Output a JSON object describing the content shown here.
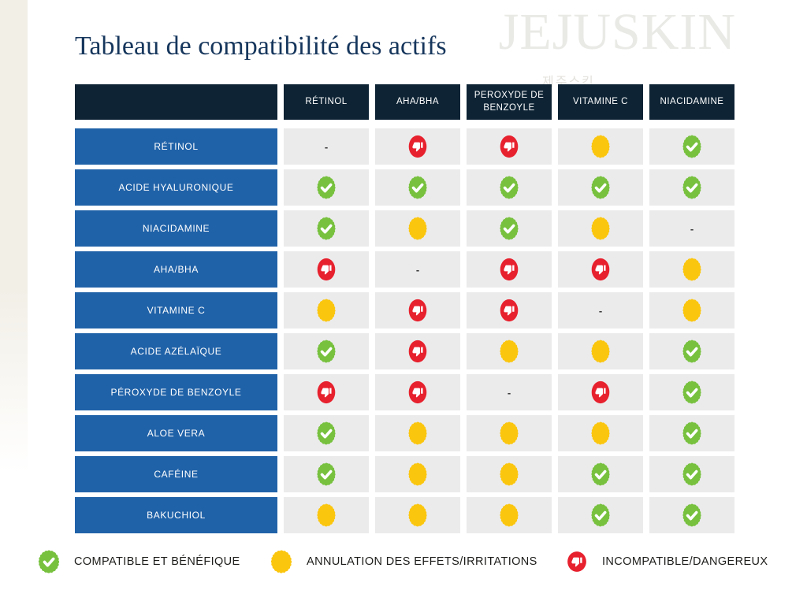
{
  "title": "Tableau de compatibilité des actifs",
  "watermark": {
    "text": "JEJUSKIN",
    "subtext": "제주스킨"
  },
  "chart_data": {
    "type": "table",
    "title": "Tableau de compatibilité des actifs",
    "columns": [
      "RÉTINOL",
      "AHA/BHA",
      "PEROXYDE DE BENZOYLE",
      "VITAMINE C",
      "NIACIDAMINE"
    ],
    "rows": [
      {
        "label": "RÉTINOL",
        "cells": [
          "-",
          "incompatible",
          "incompatible",
          "annulation",
          "compatible"
        ]
      },
      {
        "label": "ACIDE HYALURONIQUE",
        "cells": [
          "compatible",
          "compatible",
          "compatible",
          "compatible",
          "compatible"
        ]
      },
      {
        "label": "NIACIDAMINE",
        "cells": [
          "compatible",
          "annulation",
          "compatible",
          "annulation",
          "-"
        ]
      },
      {
        "label": "AHA/BHA",
        "cells": [
          "incompatible",
          "-",
          "incompatible",
          "incompatible",
          "annulation"
        ]
      },
      {
        "label": "VITAMINE C",
        "cells": [
          "annulation",
          "incompatible",
          "incompatible",
          "-",
          "annulation"
        ]
      },
      {
        "label": "ACIDE AZÉLAÏQUE",
        "cells": [
          "compatible",
          "incompatible",
          "annulation",
          "annulation",
          "compatible"
        ]
      },
      {
        "label": "PÉROXYDE DE BENZOYLE",
        "cells": [
          "incompatible",
          "incompatible",
          "-",
          "incompatible",
          "compatible"
        ]
      },
      {
        "label": "ALOE VERA",
        "cells": [
          "compatible",
          "annulation",
          "annulation",
          "annulation",
          "compatible"
        ]
      },
      {
        "label": "CAFÉINE",
        "cells": [
          "compatible",
          "annulation",
          "annulation",
          "compatible",
          "compatible"
        ]
      },
      {
        "label": "BAKUCHIOL",
        "cells": [
          "annulation",
          "annulation",
          "annulation",
          "compatible",
          "compatible"
        ]
      }
    ]
  },
  "legend": [
    {
      "value": "compatible",
      "label": "COMPATIBLE ET BÉNÉFIQUE"
    },
    {
      "value": "annulation",
      "label": "ANNULATION DES EFFETS/IRRITATIONS"
    },
    {
      "value": "incompatible",
      "label": "INCOMPATIBLE/DANGEREUX"
    }
  ],
  "colors": {
    "compatible": "#77c13e",
    "annulation": "#fbc60e",
    "incompatible": "#e7212e",
    "header_navy": "#0e2435",
    "row_blue": "#2062a8",
    "cell_gray": "#ebebeb",
    "title_navy": "#16365c",
    "watermark_gray": "#e9e9e6",
    "cream": "#f2efe7"
  }
}
